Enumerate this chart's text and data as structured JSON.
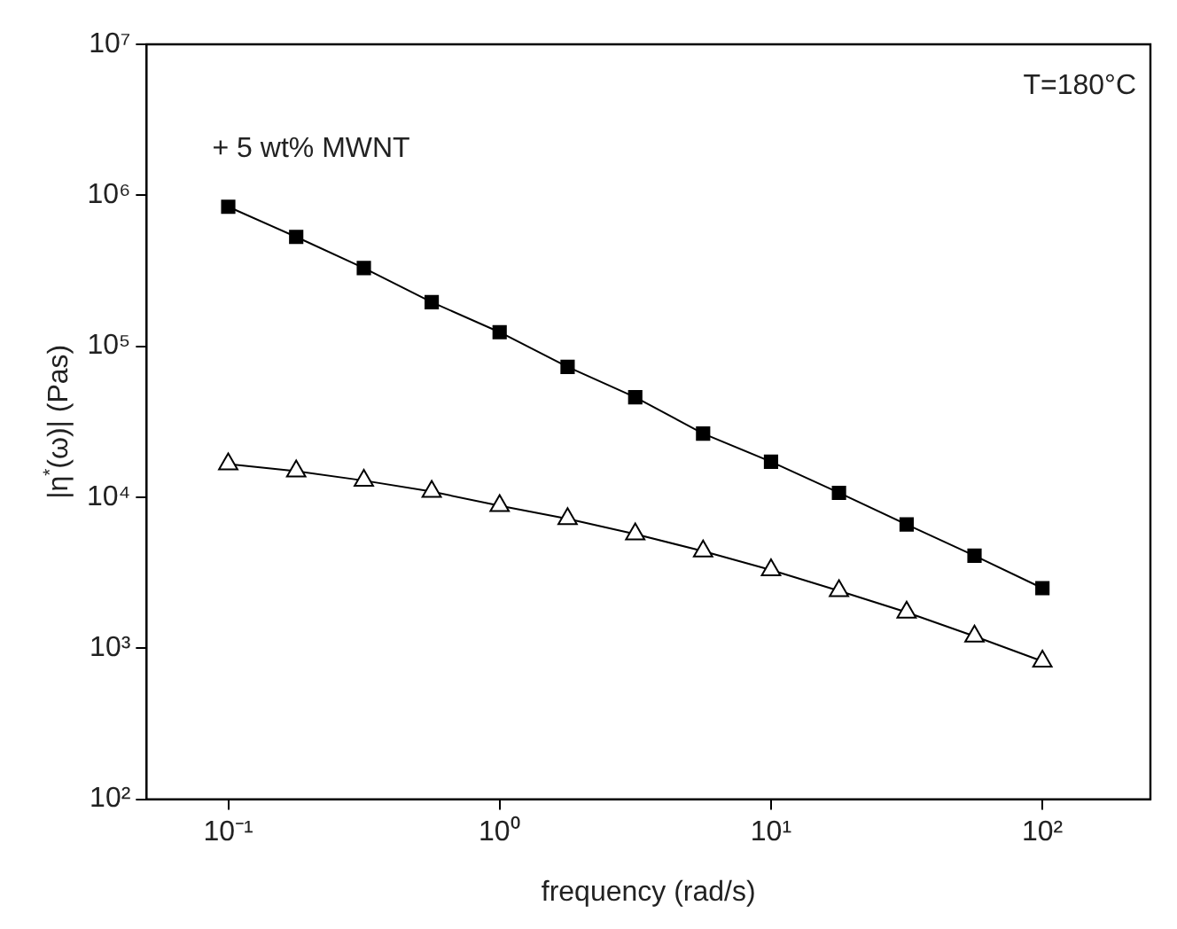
{
  "chart_data": {
    "type": "line",
    "xlabel": "frequency (rad/s)",
    "ylabel": "|η$^{*}$(ω)| (Pas)",
    "annotations": [
      "T=180°C"
    ],
    "log": "xy",
    "grid": false,
    "legend": false,
    "line_style": "solid",
    "xlim": [
      0.05,
      250
    ],
    "ylim": [
      100,
      10000000
    ],
    "xticks": [
      {
        "value": 0.1,
        "label": "10⁻¹"
      },
      {
        "value": 1,
        "label": "10⁰"
      },
      {
        "value": 10,
        "label": "10¹"
      },
      {
        "value": 100,
        "label": "10²"
      }
    ],
    "yticks": [
      {
        "value": 100,
        "label": "10²"
      },
      {
        "value": 1000,
        "label": "10³"
      },
      {
        "value": 10000,
        "label": "10⁴"
      },
      {
        "value": 100000,
        "label": "10⁵"
      },
      {
        "value": 1000000,
        "label": "10⁶"
      },
      {
        "value": 10000000,
        "label": "10⁷"
      }
    ],
    "x": [
      0.1,
      0.178,
      0.316,
      0.562,
      1,
      1.78,
      3.16,
      5.62,
      10,
      17.8,
      31.6,
      56.2,
      100
    ],
    "series": [
      {
        "name": "+ 5 wt% MWNT",
        "color": "#000000",
        "marker": "square",
        "values": [
          840000,
          530000,
          330000,
          196000,
          124000,
          73000,
          46000,
          26400,
          17200,
          10700,
          6600,
          4100,
          2500
        ]
      },
      {
        "color": "#000000",
        "marker": "triangle",
        "values": [
          16600,
          14900,
          12900,
          10900,
          8800,
          7200,
          5700,
          4400,
          3300,
          2400,
          1730,
          1200,
          820
        ]
      }
    ]
  }
}
